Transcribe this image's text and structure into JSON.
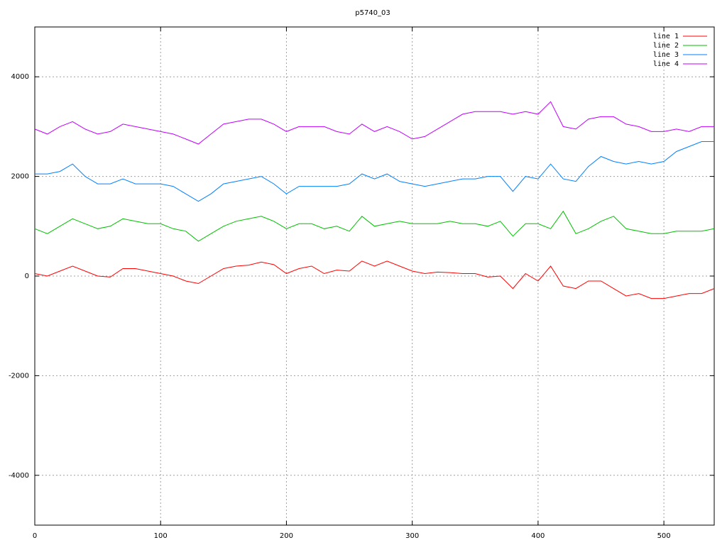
{
  "chart_data": {
    "type": "line",
    "title": "p5740_03",
    "x": [
      0,
      10,
      20,
      30,
      40,
      50,
      60,
      70,
      80,
      90,
      100,
      110,
      120,
      130,
      140,
      150,
      160,
      170,
      180,
      190,
      200,
      210,
      220,
      230,
      240,
      250,
      260,
      270,
      280,
      290,
      300,
      310,
      320,
      330,
      340,
      350,
      360,
      370,
      380,
      390,
      400,
      410,
      420,
      430,
      440,
      450,
      460,
      470,
      480,
      490,
      500,
      510,
      520,
      530,
      540
    ],
    "series": [
      {
        "name": "line 1",
        "color": "#ff0000",
        "values": [
          50,
          0,
          100,
          200,
          100,
          0,
          -20,
          150,
          150,
          100,
          50,
          0,
          -100,
          -150,
          0,
          150,
          200,
          220,
          280,
          230,
          50,
          150,
          200,
          50,
          120,
          100,
          300,
          200,
          300,
          200,
          100,
          50,
          80,
          70,
          50,
          50,
          -20,
          0,
          -250,
          50,
          -100,
          200,
          -200,
          -250,
          -100,
          -100,
          -250,
          -400,
          -350,
          -450,
          -450,
          -400,
          -350,
          -350,
          -250
        ]
      },
      {
        "name": "line 2",
        "color": "#00c000",
        "values": [
          950,
          850,
          1000,
          1150,
          1050,
          950,
          1000,
          1150,
          1100,
          1050,
          1050,
          950,
          900,
          700,
          850,
          1000,
          1100,
          1150,
          1200,
          1100,
          950,
          1050,
          1050,
          950,
          1000,
          900,
          1200,
          1000,
          1050,
          1100,
          1050,
          1050,
          1050,
          1100,
          1050,
          1050,
          1000,
          1100,
          800,
          1050,
          1050,
          950,
          1300,
          850,
          950,
          1100,
          1200,
          950,
          900,
          850,
          850,
          900,
          900,
          900,
          950
        ]
      },
      {
        "name": "line 3",
        "color": "#0080ff",
        "values": [
          2050,
          2050,
          2100,
          2250,
          2000,
          1850,
          1850,
          1950,
          1850,
          1850,
          1850,
          1800,
          1650,
          1500,
          1650,
          1850,
          1900,
          1950,
          2000,
          1850,
          1650,
          1800,
          1800,
          1800,
          1800,
          1850,
          2050,
          1950,
          2050,
          1900,
          1850,
          1800,
          1850,
          1900,
          1950,
          1950,
          2000,
          2000,
          1700,
          2000,
          1950,
          2250,
          1950,
          1900,
          2200,
          2400,
          2300,
          2250,
          2300,
          2250,
          2300,
          2500,
          2600,
          2700,
          2700
        ]
      },
      {
        "name": "line 4",
        "color": "#c000ff",
        "values": [
          2950,
          2850,
          3000,
          3100,
          2950,
          2850,
          2900,
          3050,
          3000,
          2950,
          2900,
          2850,
          2750,
          2650,
          2850,
          3050,
          3100,
          3150,
          3150,
          3050,
          2900,
          3000,
          3000,
          3000,
          2900,
          2850,
          3050,
          2900,
          3000,
          2900,
          2750,
          2800,
          2950,
          3100,
          3250,
          3300,
          3300,
          3300,
          3250,
          3300,
          3250,
          3500,
          3000,
          2950,
          3150,
          3200,
          3200,
          3050,
          3000,
          2900,
          2900,
          2950,
          2900,
          3000,
          3000
        ]
      }
    ],
    "xlim": [
      0,
      540
    ],
    "xticks": [
      0,
      100,
      200,
      300,
      400,
      500
    ],
    "ylim": [
      -5000,
      5000
    ],
    "yticks": [
      -4000,
      -2000,
      0,
      2000,
      4000
    ],
    "grid": true,
    "legend": "top-right"
  }
}
